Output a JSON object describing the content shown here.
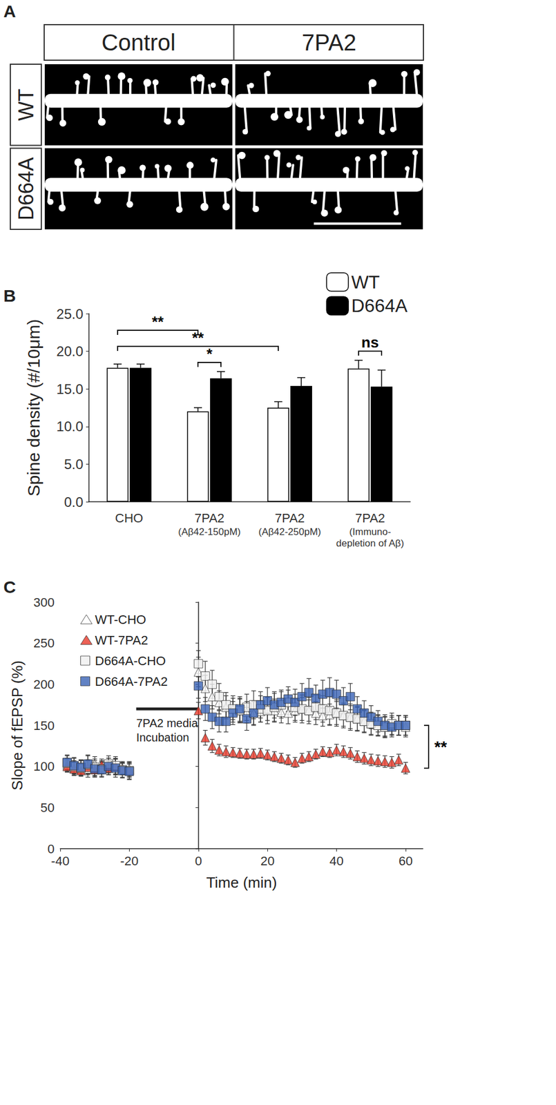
{
  "panel_A": {
    "panel_label": "A",
    "columns": [
      "Control",
      "7PA2"
    ],
    "rows": [
      "WT",
      "D664A"
    ]
  },
  "chart_data": [
    {
      "panel_label": "B",
      "type": "bar",
      "categories": [
        "CHO",
        "7PA2\n(Aβ42-150pM)",
        "7PA2\n(Aβ42-250pM)",
        "7PA2\n(Immuno-\ndepletion of Aβ)"
      ],
      "y_label": "Spine density (#/10μm)",
      "ylim": [
        0,
        25
      ],
      "yticks": [
        {
          "value": 0,
          "label": "0.0"
        },
        {
          "value": 5,
          "label": "5.0"
        },
        {
          "value": 10,
          "label": "10.0"
        },
        {
          "value": 15,
          "label": "15.0"
        },
        {
          "value": 20,
          "label": "20.0"
        },
        {
          "value": 25,
          "label": "25.0"
        }
      ],
      "grid": false,
      "legend": "upper right",
      "series": [
        {
          "name": "WT",
          "color": "#ffffff",
          "values": [
            17.8,
            12.0,
            12.5,
            17.7
          ],
          "errors": [
            0.5,
            0.5,
            0.8,
            1.1
          ]
        },
        {
          "name": "D664A",
          "color": "#000000",
          "values": [
            17.8,
            16.4,
            15.4,
            15.3
          ],
          "errors": [
            0.5,
            0.9,
            1.1,
            2.2
          ]
        }
      ],
      "annotations": [
        {
          "text": "**",
          "from": [
            "CHO",
            "WT"
          ],
          "to": [
            "7PA2\n(Aβ42-150pM)",
            "WT"
          ]
        },
        {
          "text": "**",
          "from": [
            "CHO",
            "WT"
          ],
          "to": [
            "7PA2\n(Aβ42-250pM)",
            "WT"
          ]
        },
        {
          "text": "*",
          "from": [
            "7PA2\n(Aβ42-150pM)",
            "WT"
          ],
          "to": [
            "7PA2\n(Aβ42-150pM)",
            "D664A"
          ]
        },
        {
          "text": "ns",
          "from": [
            "7PA2\n(Immuno-\ndepletion of Aβ)",
            "WT"
          ],
          "to": [
            "7PA2\n(Immuno-\ndepletion of Aβ)",
            "D664A"
          ]
        }
      ]
    },
    {
      "panel_label": "C",
      "type": "scatter",
      "x_label": "Time (min)",
      "y_label": "Slope of fEPSP (%)",
      "x": [
        -38,
        -36,
        -34,
        -32,
        -30,
        -28,
        -26,
        -24,
        -22,
        -20,
        0,
        2,
        4,
        6,
        8,
        10,
        12,
        14,
        16,
        18,
        20,
        22,
        24,
        26,
        28,
        30,
        32,
        34,
        36,
        38,
        40,
        42,
        44,
        46,
        48,
        50,
        52,
        54,
        56,
        58,
        60
      ],
      "xlim": [
        -40,
        65
      ],
      "xticks": [
        -40,
        -20,
        0,
        20,
        40,
        60
      ],
      "ylim": [
        0,
        300
      ],
      "yticks": [
        0,
        50,
        100,
        150,
        200,
        250,
        300
      ],
      "grid": false,
      "legend": "upper left",
      "series": [
        {
          "name": "WT-CHO",
          "color": "#ffffff",
          "marker": "triangle",
          "values": [
            102,
            98,
            100,
            97,
            103,
            99,
            101,
            100,
            98,
            97,
            215,
            195,
            185,
            178,
            172,
            170,
            168,
            166,
            165,
            167,
            170,
            168,
            166,
            165,
            168,
            170,
            168,
            165,
            162,
            163,
            165,
            162,
            160,
            158,
            155,
            152,
            150,
            148,
            150,
            150,
            148
          ],
          "errors": [
            8,
            9,
            8,
            10,
            9,
            8,
            9,
            10,
            8,
            9,
            18,
            16,
            15,
            14,
            14,
            13,
            14,
            13,
            14,
            13,
            14,
            14,
            13,
            13,
            14,
            14,
            13,
            14,
            13,
            13,
            14,
            13,
            14,
            14,
            13,
            13,
            12,
            12,
            12,
            12,
            12
          ]
        },
        {
          "name": "WT-7PA2",
          "color": "#e8392a",
          "marker": "triangle",
          "values": [
            100,
            97,
            95,
            99,
            96,
            102,
            98,
            100,
            97,
            95,
            168,
            135,
            125,
            120,
            118,
            117,
            116,
            115,
            115,
            116,
            114,
            112,
            110,
            108,
            105,
            110,
            112,
            115,
            118,
            117,
            120,
            118,
            116,
            112,
            110,
            108,
            107,
            106,
            105,
            108,
            98
          ],
          "errors": [
            7,
            8,
            7,
            9,
            8,
            7,
            8,
            9,
            7,
            8,
            10,
            9,
            8,
            7,
            7,
            6,
            6,
            6,
            6,
            6,
            6,
            6,
            6,
            6,
            6,
            6,
            6,
            6,
            6,
            6,
            7,
            7,
            7,
            7,
            7,
            7,
            7,
            7,
            7,
            7,
            7
          ]
        },
        {
          "name": "D664A-CHO",
          "color": "#f0f0f0",
          "marker": "square",
          "values": [
            104,
            100,
            98,
            102,
            99,
            97,
            103,
            101,
            96,
            95,
            225,
            210,
            200,
            185,
            175,
            170,
            168,
            172,
            175,
            170,
            168,
            172,
            175,
            178,
            172,
            170,
            168,
            172,
            170,
            168,
            165,
            162,
            160,
            158,
            155,
            152,
            150,
            148,
            152,
            150,
            150
          ],
          "errors": [
            9,
            10,
            9,
            11,
            10,
            9,
            10,
            11,
            9,
            10,
            16,
            18,
            17,
            16,
            15,
            16,
            15,
            16,
            17,
            16,
            16,
            17,
            16,
            15,
            16,
            17,
            16,
            15,
            16,
            17,
            16,
            15,
            16,
            15,
            14,
            14,
            13,
            13,
            13,
            12,
            12
          ]
        },
        {
          "name": "D664A-7PA2",
          "color": "#3a63b5",
          "marker": "square",
          "values": [
            105,
            101,
            99,
            103,
            97,
            96,
            100,
            98,
            95,
            94,
            198,
            170,
            160,
            155,
            155,
            165,
            170,
            158,
            165,
            175,
            180,
            175,
            178,
            182,
            178,
            185,
            190,
            183,
            188,
            190,
            188,
            180,
            185,
            170,
            165,
            160,
            155,
            150,
            148,
            150,
            150
          ],
          "errors": [
            9,
            10,
            9,
            11,
            10,
            9,
            10,
            11,
            9,
            10,
            15,
            14,
            14,
            13,
            13,
            14,
            15,
            14,
            15,
            16,
            16,
            16,
            15,
            15,
            16,
            16,
            17,
            16,
            17,
            18,
            17,
            16,
            16,
            15,
            15,
            14,
            13,
            13,
            12,
            12,
            12
          ]
        }
      ],
      "annotations": [
        {
          "text": "7PA2 media\nIncubation",
          "x": [
            -18,
            0
          ],
          "y": 170
        },
        {
          "text": "**",
          "between": [
            "WT-7PA2",
            "D664A-7PA2"
          ]
        }
      ]
    }
  ]
}
